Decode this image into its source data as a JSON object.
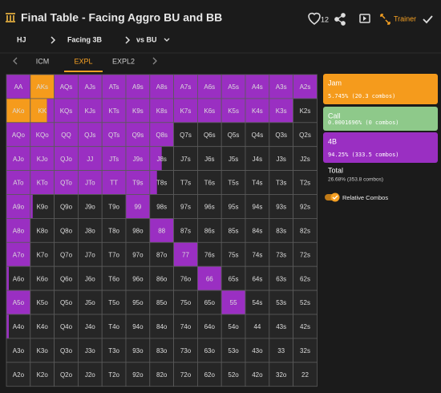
{
  "header": {
    "title": "Final Table - Facing Aggro BU and BB",
    "likes": "12",
    "trainer": "Trainer"
  },
  "nav": {
    "position": "HJ",
    "action": "Facing 3B",
    "villain": "vs BU"
  },
  "tabs": [
    "ICM",
    "EXPL",
    "EXPL2"
  ],
  "grid": {
    "rows": [
      [
        "AA",
        "AKs",
        "AQs",
        "AJs",
        "ATs",
        "A9s",
        "A8s",
        "A7s",
        "A6s",
        "A5s",
        "A4s",
        "A3s",
        "A2s"
      ],
      [
        "AKo",
        "KK",
        "KQs",
        "KJs",
        "KTs",
        "K9s",
        "K8s",
        "K7s",
        "K6s",
        "K5s",
        "K4s",
        "K3s",
        "K2s"
      ],
      [
        "AQo",
        "KQo",
        "QQ",
        "QJs",
        "QTs",
        "Q9s",
        "Q8s",
        "Q7s",
        "Q6s",
        "Q5s",
        "Q4s",
        "Q3s",
        "Q2s"
      ],
      [
        "AJo",
        "KJo",
        "QJo",
        "JJ",
        "JTs",
        "J9s",
        "J8s",
        "J7s",
        "J6s",
        "J5s",
        "J4s",
        "J3s",
        "J2s"
      ],
      [
        "ATo",
        "KTo",
        "QTo",
        "JTo",
        "TT",
        "T9s",
        "T8s",
        "T7s",
        "T6s",
        "T5s",
        "T4s",
        "T3s",
        "T2s"
      ],
      [
        "A9o",
        "K9o",
        "Q9o",
        "J9o",
        "T9o",
        "99",
        "98s",
        "97s",
        "96s",
        "95s",
        "94s",
        "93s",
        "92s"
      ],
      [
        "A8o",
        "K8o",
        "Q8o",
        "J8o",
        "T8o",
        "98o",
        "88",
        "87s",
        "86s",
        "85s",
        "84s",
        "83s",
        "82s"
      ],
      [
        "A7o",
        "K7o",
        "Q7o",
        "J7o",
        "T7o",
        "97o",
        "87o",
        "77",
        "76s",
        "75s",
        "74s",
        "73s",
        "72s"
      ],
      [
        "A6o",
        "K6o",
        "Q6o",
        "J6o",
        "T6o",
        "96o",
        "86o",
        "76o",
        "66",
        "65s",
        "64s",
        "63s",
        "62s"
      ],
      [
        "A5o",
        "K5o",
        "Q5o",
        "J5o",
        "T5o",
        "95o",
        "85o",
        "75o",
        "65o",
        "55",
        "54s",
        "53s",
        "52s"
      ],
      [
        "A4o",
        "K4o",
        "Q4o",
        "J4o",
        "T4o",
        "94o",
        "84o",
        "74o",
        "64o",
        "54o",
        "44",
        "43s",
        "42s"
      ],
      [
        "A3o",
        "K3o",
        "Q3o",
        "J3o",
        "T3o",
        "93o",
        "83o",
        "73o",
        "63o",
        "53o",
        "43o",
        "33",
        "32s"
      ],
      [
        "A2o",
        "K2o",
        "Q2o",
        "J2o",
        "T2o",
        "92o",
        "82o",
        "72o",
        "62o",
        "52o",
        "42o",
        "32o",
        "22"
      ]
    ],
    "jam": [
      [
        0,
        1,
        0,
        0,
        0,
        0,
        0,
        0,
        0,
        0,
        0,
        0,
        0
      ],
      [
        1,
        0.7,
        0,
        0,
        0,
        0,
        0,
        0,
        0,
        0,
        0,
        0,
        0
      ],
      [
        0,
        0,
        0,
        0,
        0,
        0,
        0,
        0,
        0,
        0,
        0,
        0,
        0
      ],
      [
        0,
        0,
        0,
        0,
        0,
        0,
        0,
        0,
        0,
        0,
        0,
        0,
        0
      ],
      [
        0,
        0,
        0,
        0,
        0,
        0,
        0,
        0,
        0,
        0,
        0,
        0,
        0
      ],
      [
        0,
        0,
        0,
        0,
        0,
        0,
        0,
        0,
        0,
        0,
        0,
        0,
        0
      ],
      [
        0,
        0,
        0,
        0,
        0,
        0,
        0,
        0,
        0,
        0,
        0,
        0,
        0
      ],
      [
        0,
        0,
        0,
        0,
        0,
        0,
        0,
        0,
        0,
        0,
        0,
        0,
        0
      ],
      [
        0,
        0,
        0,
        0,
        0,
        0,
        0,
        0,
        0,
        0,
        0,
        0,
        0
      ],
      [
        0,
        0,
        0,
        0,
        0,
        0,
        0,
        0,
        0,
        0,
        0,
        0,
        0
      ],
      [
        0,
        0,
        0,
        0,
        0,
        0,
        0,
        0,
        0,
        0,
        0,
        0,
        0
      ],
      [
        0,
        0,
        0,
        0,
        0,
        0,
        0,
        0,
        0,
        0,
        0,
        0,
        0
      ],
      [
        0,
        0,
        0,
        0,
        0,
        0,
        0,
        0,
        0,
        0,
        0,
        0,
        0
      ]
    ],
    "fourbet": [
      [
        1,
        0,
        1,
        1,
        1,
        1,
        1,
        1,
        1,
        1,
        1,
        1,
        1
      ],
      [
        0,
        0.3,
        1,
        1,
        1,
        1,
        1,
        1,
        1,
        1,
        1,
        1,
        0
      ],
      [
        1,
        1,
        1,
        1,
        1,
        1,
        1,
        0,
        0,
        0,
        0,
        0,
        0
      ],
      [
        1,
        1,
        1,
        1,
        1,
        1,
        0.5,
        0,
        0,
        0,
        0,
        0,
        0
      ],
      [
        1,
        1,
        1,
        1,
        1,
        1,
        0.3,
        0,
        0,
        0,
        0,
        0,
        0
      ],
      [
        1,
        0.1,
        0,
        0,
        0,
        1,
        0,
        0,
        0,
        0,
        0,
        0,
        0
      ],
      [
        1,
        0,
        0,
        0,
        0,
        0,
        1,
        0,
        0,
        0,
        0,
        0,
        0
      ],
      [
        1,
        0,
        0,
        0,
        0,
        0,
        0,
        1,
        0,
        0,
        0,
        0,
        0
      ],
      [
        0.1,
        0,
        0,
        0,
        0,
        0,
        0,
        0,
        1,
        0,
        0,
        0,
        0
      ],
      [
        1,
        0,
        0,
        0,
        0,
        0,
        0,
        0,
        0,
        1,
        0,
        0,
        0
      ],
      [
        0.1,
        0,
        0,
        0,
        0,
        0,
        0,
        0,
        0,
        0,
        0,
        0,
        0
      ],
      [
        0,
        0,
        0,
        0,
        0,
        0,
        0,
        0,
        0,
        0,
        0,
        0,
        0
      ],
      [
        0,
        0,
        0,
        0,
        0,
        0,
        0,
        0,
        0,
        0,
        0,
        0,
        0
      ]
    ]
  },
  "legend": [
    {
      "name": "Jam",
      "detail": "5.745% (20.3 combos)",
      "color": "#f59b1c"
    },
    {
      "name": "Call",
      "detail": "0.0001696% (0 combos)",
      "color": "#8ec98a"
    },
    {
      "name": "4B",
      "detail": "94.25% (333.5 combos)",
      "color": "#9a2fc2"
    }
  ],
  "total": {
    "label": "Total",
    "detail": "26.68% (353.8 combos)"
  },
  "toggle": "Relative Combos"
}
